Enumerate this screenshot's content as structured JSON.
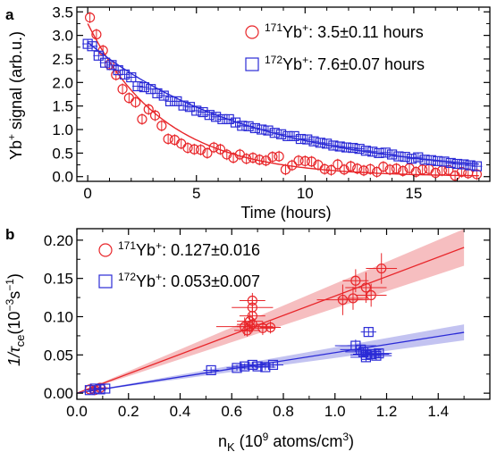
{
  "colors": {
    "red": "#e8262a",
    "blue": "#2b2bd6",
    "red_band": "#f5b3b5",
    "blue_band": "#b9b9ee"
  },
  "chart_data": [
    {
      "panel": "a",
      "type": "scatter",
      "xlabel": "Time (hours)",
      "ylabel_main": "Yb",
      "ylabel_sup": "+",
      "ylabel_tail": " signal (arb.u.)",
      "xlim": [
        -0.5,
        18.5
      ],
      "ylim": [
        -0.1,
        3.6
      ],
      "xticks": [
        0,
        5,
        10,
        15
      ],
      "yticks": [
        0.0,
        0.5,
        1.0,
        1.5,
        2.0,
        2.5,
        3.0,
        3.5
      ],
      "ytick_labels": [
        "0.0",
        "0.5",
        "1.0",
        "1.5",
        "2.0",
        "2.5",
        "3.0",
        "3.5"
      ],
      "series": [
        {
          "isotope": "171",
          "ion": "Yb",
          "charge": "+",
          "text": ": 3.5±0.11 hours",
          "marker": "circle",
          "color": "red",
          "fit": {
            "A": 3.25,
            "tau": 3.5
          },
          "x": [
            0.1,
            0.4,
            0.7,
            1.0,
            1.3,
            1.6,
            1.9,
            2.2,
            2.5,
            2.8,
            3.1,
            3.4,
            3.7,
            4.0,
            4.3,
            4.6,
            4.9,
            5.2,
            5.5,
            5.8,
            6.1,
            6.4,
            6.7,
            7.0,
            7.3,
            7.6,
            7.9,
            8.2,
            8.5,
            8.8,
            9.1,
            9.4,
            9.7,
            10.0,
            10.3,
            10.6,
            10.9,
            11.2,
            11.5,
            11.8,
            12.1,
            12.4,
            12.7,
            13.0,
            13.3,
            13.6,
            13.9,
            14.2,
            14.5,
            14.8,
            15.1,
            15.4,
            15.7,
            16.0,
            16.3,
            16.6,
            16.9,
            17.2,
            17.5,
            17.9
          ],
          "y": [
            3.38,
            3.02,
            2.68,
            2.38,
            2.16,
            1.86,
            1.67,
            1.58,
            1.22,
            1.43,
            1.3,
            1.08,
            0.8,
            0.78,
            0.7,
            0.61,
            0.58,
            0.57,
            0.5,
            0.62,
            0.58,
            0.47,
            0.4,
            0.47,
            0.38,
            0.4,
            0.36,
            0.34,
            0.42,
            0.43,
            0.15,
            0.24,
            0.34,
            0.33,
            0.32,
            0.25,
            0.16,
            0.14,
            0.26,
            0.15,
            0.22,
            0.17,
            0.13,
            0.16,
            0.1,
            0.21,
            0.15,
            0.17,
            0.12,
            0.18,
            0.1,
            0.15,
            0.16,
            0.08,
            0.13,
            0.14,
            0.02,
            0.1,
            0.07,
            0.05
          ],
          "yerr": 0.12
        },
        {
          "isotope": "172",
          "ion": "Yb",
          "charge": "+",
          "text": ": 7.6±0.07 hours",
          "marker": "square",
          "color": "blue",
          "fit": {
            "A": 2.85,
            "tau": 7.6
          },
          "x": [
            0.0,
            0.2,
            0.5,
            0.8,
            1.1,
            1.4,
            1.7,
            2.0,
            2.3,
            2.6,
            2.9,
            3.2,
            3.5,
            3.8,
            4.1,
            4.4,
            4.7,
            5.0,
            5.3,
            5.6,
            5.9,
            6.2,
            6.5,
            6.8,
            7.1,
            7.4,
            7.7,
            8.0,
            8.3,
            8.6,
            8.9,
            9.2,
            9.5,
            9.8,
            10.1,
            10.4,
            10.7,
            11.0,
            11.3,
            11.6,
            11.9,
            12.2,
            12.5,
            12.8,
            13.1,
            13.4,
            13.7,
            14.0,
            14.3,
            14.6,
            14.9,
            15.2,
            15.5,
            15.8,
            16.1,
            16.4,
            16.7,
            17.0,
            17.3,
            17.6,
            17.9
          ],
          "y": [
            2.82,
            2.77,
            2.57,
            2.42,
            2.37,
            2.26,
            2.17,
            2.11,
            1.92,
            1.9,
            1.86,
            1.77,
            1.72,
            1.6,
            1.6,
            1.51,
            1.48,
            1.4,
            1.37,
            1.31,
            1.27,
            1.22,
            1.22,
            1.15,
            1.08,
            1.07,
            1.03,
            1.0,
            0.98,
            0.93,
            0.9,
            0.86,
            0.86,
            0.8,
            0.79,
            0.75,
            0.72,
            0.7,
            0.66,
            0.64,
            0.62,
            0.61,
            0.59,
            0.55,
            0.53,
            0.5,
            0.51,
            0.47,
            0.43,
            0.42,
            0.38,
            0.41,
            0.36,
            0.35,
            0.33,
            0.32,
            0.29,
            0.27,
            0.26,
            0.24,
            0.22
          ],
          "yerr": 0.1
        }
      ]
    },
    {
      "panel": "b",
      "type": "scatter",
      "xlabel_main": "n",
      "xlabel_sub": "K",
      "xlabel_tail": " (10",
      "xlabel_sup1": "9",
      "xlabel_tail2": " atoms/cm",
      "xlabel_sup2": "3",
      "xlabel_end": ")",
      "ylabel_main": "1/τ",
      "ylabel_sub": "ce",
      "ylabel_tail": "(10",
      "ylabel_sup": "−3",
      "ylabel_tail2": "s",
      "ylabel_sup2": "−1",
      "ylabel_end": ")",
      "xlim": [
        0.0,
        1.6
      ],
      "ylim": [
        -0.008,
        0.215
      ],
      "xticks": [
        0.0,
        0.2,
        0.4,
        0.6,
        0.8,
        1.0,
        1.2,
        1.4
      ],
      "xtick_labels": [
        "0.0",
        "0.2",
        "0.4",
        "0.6",
        "0.8",
        "1.0",
        "1.2",
        "1.4"
      ],
      "yticks": [
        0.0,
        0.05,
        0.1,
        0.15,
        0.2
      ],
      "ytick_labels": [
        "0.00",
        "0.05",
        "0.10",
        "0.15",
        "0.20"
      ],
      "series": [
        {
          "isotope": "171",
          "ion": "Yb",
          "charge": "+",
          "text": ": 0.127±0.016",
          "marker": "circle",
          "color": "red",
          "slope": 0.127,
          "slope_err": 0.016,
          "points": [
            {
              "x": 0.05,
              "y": 0.005,
              "xe": 0.02,
              "ye": 0.004
            },
            {
              "x": 0.07,
              "y": 0.004,
              "xe": 0.02,
              "ye": 0.004
            },
            {
              "x": 0.09,
              "y": 0.007,
              "xe": 0.03,
              "ye": 0.004
            },
            {
              "x": 0.66,
              "y": 0.082,
              "xe": 0.05,
              "ye": 0.008
            },
            {
              "x": 0.67,
              "y": 0.087,
              "xe": 0.05,
              "ye": 0.008
            },
            {
              "x": 0.68,
              "y": 0.09,
              "xe": 0.06,
              "ye": 0.01
            },
            {
              "x": 0.68,
              "y": 0.112,
              "xe": 0.08,
              "ye": 0.012
            },
            {
              "x": 0.68,
              "y": 0.121,
              "xe": 0.05,
              "ye": 0.01
            },
            {
              "x": 0.68,
              "y": 0.101,
              "xe": 0.05,
              "ye": 0.01
            },
            {
              "x": 0.67,
              "y": 0.094,
              "xe": 0.05,
              "ye": 0.01
            },
            {
              "x": 0.65,
              "y": 0.087,
              "xe": 0.11,
              "ye": 0.012
            },
            {
              "x": 0.72,
              "y": 0.085,
              "xe": 0.05,
              "ye": 0.009
            },
            {
              "x": 0.75,
              "y": 0.086,
              "xe": 0.04,
              "ye": 0.008
            },
            {
              "x": 1.03,
              "y": 0.122,
              "xe": 0.1,
              "ye": 0.02
            },
            {
              "x": 1.07,
              "y": 0.124,
              "xe": 0.06,
              "ye": 0.015
            },
            {
              "x": 1.08,
              "y": 0.147,
              "xe": 0.05,
              "ye": 0.015
            },
            {
              "x": 1.12,
              "y": 0.138,
              "xe": 0.08,
              "ye": 0.02
            },
            {
              "x": 1.14,
              "y": 0.128,
              "xe": 0.06,
              "ye": 0.015
            },
            {
              "x": 1.18,
              "y": 0.163,
              "xe": 0.06,
              "ye": 0.02
            }
          ]
        },
        {
          "isotope": "172",
          "ion": "Yb",
          "charge": "+",
          "text": ": 0.053±0.007",
          "marker": "square",
          "color": "blue",
          "slope": 0.053,
          "slope_err": 0.007,
          "points": [
            {
              "x": 0.05,
              "y": 0.004,
              "xe": 0.02,
              "ye": 0.003
            },
            {
              "x": 0.07,
              "y": 0.006,
              "xe": 0.02,
              "ye": 0.003
            },
            {
              "x": 0.09,
              "y": 0.005,
              "xe": 0.02,
              "ye": 0.003
            },
            {
              "x": 0.11,
              "y": 0.006,
              "xe": 0.02,
              "ye": 0.003
            },
            {
              "x": 0.52,
              "y": 0.03,
              "xe": 0.03,
              "ye": 0.004
            },
            {
              "x": 0.62,
              "y": 0.033,
              "xe": 0.04,
              "ye": 0.004
            },
            {
              "x": 0.65,
              "y": 0.035,
              "xe": 0.05,
              "ye": 0.004
            },
            {
              "x": 0.68,
              "y": 0.037,
              "xe": 0.05,
              "ye": 0.004
            },
            {
              "x": 0.7,
              "y": 0.035,
              "xe": 0.05,
              "ye": 0.004
            },
            {
              "x": 0.73,
              "y": 0.034,
              "xe": 0.04,
              "ye": 0.004
            },
            {
              "x": 0.76,
              "y": 0.037,
              "xe": 0.04,
              "ye": 0.004
            },
            {
              "x": 1.08,
              "y": 0.062,
              "xe": 0.08,
              "ye": 0.008
            },
            {
              "x": 1.1,
              "y": 0.057,
              "xe": 0.08,
              "ye": 0.006
            },
            {
              "x": 1.11,
              "y": 0.054,
              "xe": 0.07,
              "ye": 0.006
            },
            {
              "x": 1.12,
              "y": 0.05,
              "xe": 0.06,
              "ye": 0.006
            },
            {
              "x": 1.12,
              "y": 0.047,
              "xe": 0.06,
              "ye": 0.006
            },
            {
              "x": 1.13,
              "y": 0.08,
              "xe": 0.03,
              "ye": 0.006
            },
            {
              "x": 1.14,
              "y": 0.051,
              "xe": 0.07,
              "ye": 0.006
            },
            {
              "x": 1.16,
              "y": 0.049,
              "xe": 0.06,
              "ye": 0.006
            },
            {
              "x": 1.17,
              "y": 0.052,
              "xe": 0.05,
              "ye": 0.006
            }
          ]
        }
      ]
    }
  ]
}
